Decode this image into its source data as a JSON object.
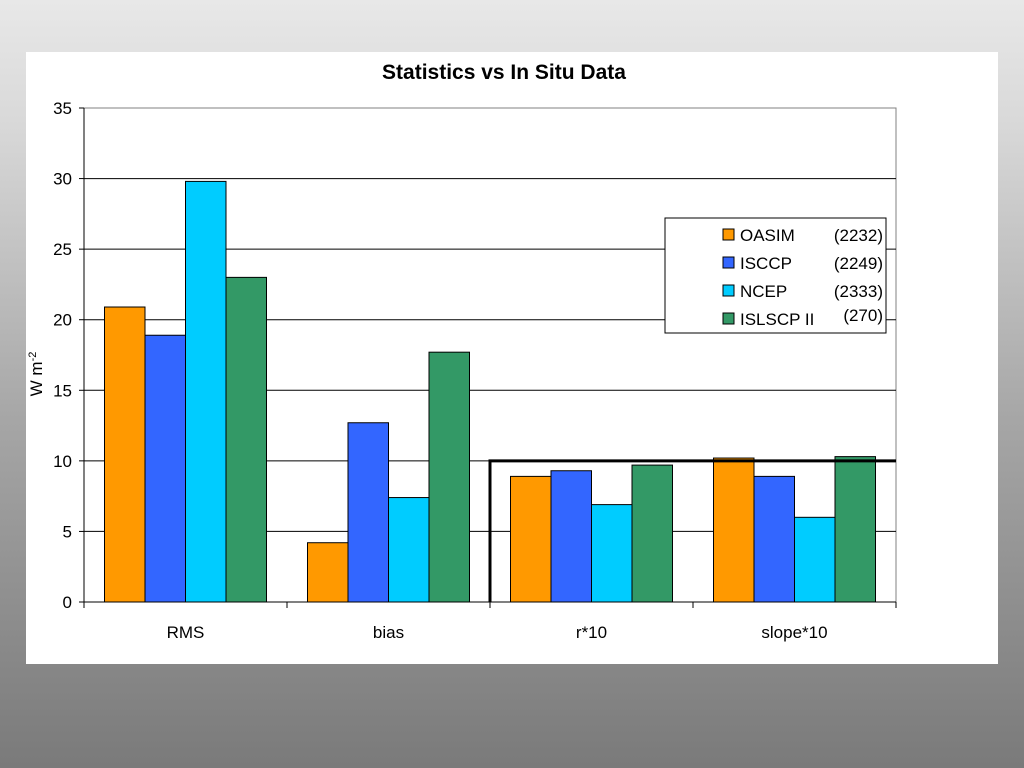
{
  "chart_data": {
    "type": "bar",
    "title": "Statistics vs In Situ Data",
    "xlabel": "",
    "ylabel": "W m",
    "ylabel_sup": "-2",
    "ylim": [
      0,
      35
    ],
    "yticks": [
      0,
      5,
      10,
      15,
      20,
      25,
      30,
      35
    ],
    "grid": true,
    "legend_position": "right",
    "categories": [
      "RMS",
      "bias",
      "r*10",
      "slope*10"
    ],
    "series": [
      {
        "name": "OASIM",
        "count": "(2232)",
        "color": "#ff9900",
        "values": [
          20.9,
          4.2,
          8.9,
          10.2
        ]
      },
      {
        "name": "ISCCP",
        "count": "(2249)",
        "color": "#3366ff",
        "values": [
          18.9,
          12.7,
          9.3,
          8.9
        ]
      },
      {
        "name": "NCEP",
        "count": "(2333)",
        "color": "#00ccff",
        "values": [
          29.8,
          7.4,
          6.9,
          6.0
        ]
      },
      {
        "name": "ISLSCP II",
        "count": "(270)",
        "color": "#339966",
        "values": [
          23.0,
          17.7,
          9.7,
          10.3
        ]
      }
    ],
    "reference_line": {
      "y": 10,
      "from_category": "r*10",
      "to_category": "slope*10"
    }
  }
}
